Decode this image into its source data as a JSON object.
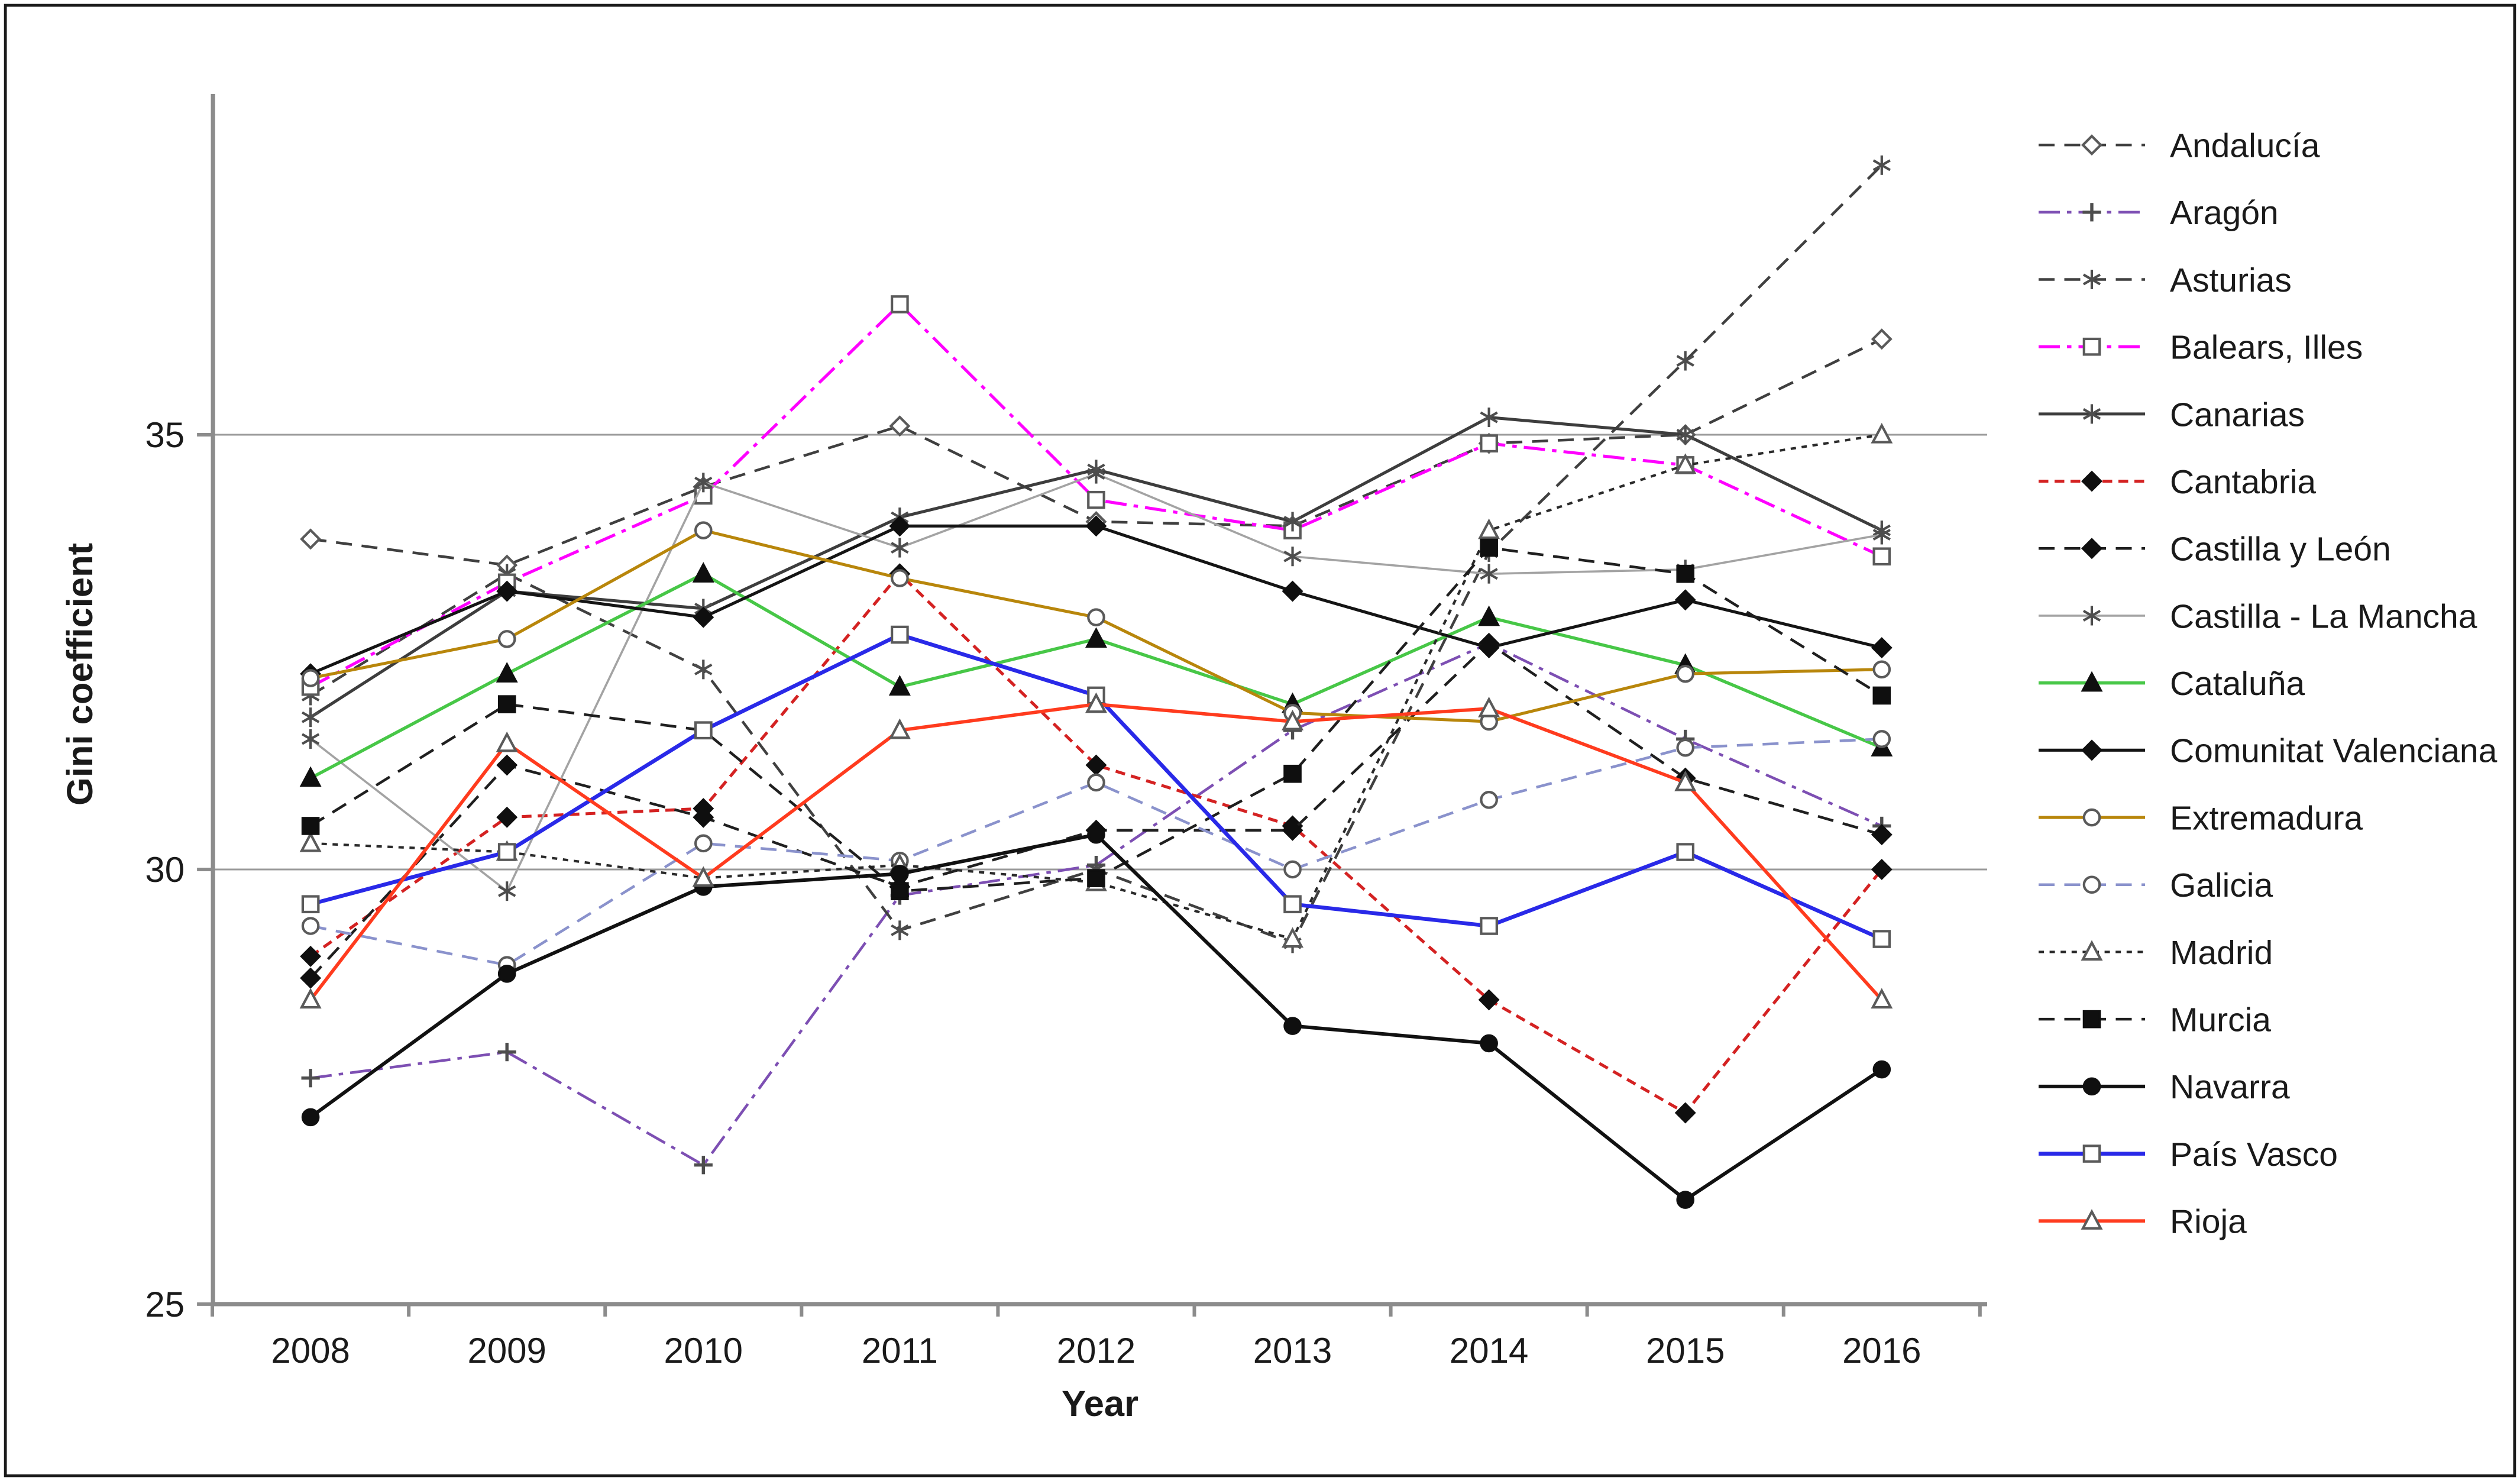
{
  "figure": {
    "kind": "statistical line chart",
    "background": "#ffffff",
    "border_color": "#1a1a1a"
  },
  "chart_data": {
    "type": "line",
    "title": "",
    "xlabel": "Year",
    "ylabel": "Gini coefficient",
    "x": [
      2008,
      2009,
      2010,
      2011,
      2012,
      2013,
      2014,
      2015,
      2016
    ],
    "yticks": [
      25,
      30,
      35
    ],
    "gridlines": [
      30,
      35
    ],
    "ylim": [
      25,
      38.9
    ],
    "legend_position": "right",
    "axis_color": "#8c8c8c",
    "grid_color": "#9a9a9a",
    "series": [
      {
        "name": "Andalucía",
        "color": "#3f3f3f",
        "line": "dashed",
        "width": 1.5,
        "marker": "diamond",
        "fill": "open",
        "values": [
          33.8,
          33.5,
          34.4,
          35.1,
          34.0,
          33.95,
          34.9,
          35.0,
          36.1
        ]
      },
      {
        "name": "Aragón",
        "color": "#7d4fb3",
        "line": "dashdot",
        "width": 1.5,
        "marker": "plus",
        "fill": "open",
        "values": [
          27.6,
          27.9,
          26.6,
          29.7,
          30.05,
          31.6,
          32.6,
          31.5,
          30.5
        ]
      },
      {
        "name": "Asturias",
        "color": "#404040",
        "line": "dashed",
        "width": 1.5,
        "marker": "asterisk",
        "fill": "open",
        "values": [
          32.0,
          33.4,
          32.3,
          29.3,
          30.0,
          29.15,
          33.65,
          35.85,
          38.1
        ]
      },
      {
        "name": "Balears, Illes",
        "color": "#ff00ff",
        "line": "dashdot",
        "width": 1.7,
        "marker": "square",
        "fill": "open",
        "values": [
          32.1,
          33.3,
          34.3,
          36.5,
          34.25,
          33.9,
          34.9,
          34.65,
          33.6
        ]
      },
      {
        "name": "Canarias",
        "color": "#3d3d3d",
        "line": "solid",
        "width": 1.7,
        "marker": "asterisk",
        "fill": "open",
        "values": [
          31.75,
          33.2,
          33.0,
          34.05,
          34.6,
          34.0,
          35.2,
          35.0,
          33.9
        ]
      },
      {
        "name": "Cantabria",
        "color": "#d42222",
        "line": "finedash",
        "width": 1.7,
        "marker": "diamond",
        "fill": "filled",
        "values": [
          29.0,
          30.6,
          30.7,
          33.4,
          31.2,
          30.5,
          28.5,
          27.2,
          30.0
        ]
      },
      {
        "name": "Castilla y León",
        "color": "#1f1f1f",
        "line": "dashed",
        "width": 1.5,
        "marker": "diamond",
        "fill": "filled",
        "values": [
          28.75,
          31.2,
          30.6,
          29.8,
          30.45,
          30.45,
          32.6,
          31.05,
          30.4
        ]
      },
      {
        "name": "Castilla - La Mancha",
        "color": "#a3a3a3",
        "line": "solid",
        "width": 1.2,
        "marker": "asterisk",
        "fill": "open",
        "values": [
          31.5,
          29.75,
          34.45,
          33.7,
          34.55,
          33.6,
          33.4,
          33.45,
          33.85
        ]
      },
      {
        "name": "Cataluña",
        "color": "#47c747",
        "line": "solid",
        "width": 1.8,
        "marker": "triangle",
        "fill": "filled",
        "values": [
          31.05,
          32.25,
          33.4,
          32.1,
          32.65,
          31.9,
          32.9,
          32.35,
          31.4
        ]
      },
      {
        "name": "Comunitat Valenciana",
        "color": "#141414",
        "line": "solid",
        "width": 1.7,
        "marker": "diamond",
        "fill": "filled",
        "values": [
          32.25,
          33.2,
          32.9,
          33.95,
          33.95,
          33.2,
          32.55,
          33.1,
          32.55
        ]
      },
      {
        "name": "Extremadura",
        "color": "#b8860b",
        "line": "solid",
        "width": 1.7,
        "marker": "circle",
        "fill": "open",
        "values": [
          32.2,
          32.65,
          33.9,
          33.35,
          32.9,
          31.8,
          31.7,
          32.25,
          32.3
        ]
      },
      {
        "name": "Galicia",
        "color": "#8a92cc",
        "line": "dashed",
        "width": 1.5,
        "marker": "circle",
        "fill": "open",
        "values": [
          29.35,
          28.9,
          30.3,
          30.1,
          31.0,
          30.0,
          30.8,
          31.4,
          31.5
        ]
      },
      {
        "name": "Madrid",
        "color": "#2a2a2a",
        "line": "dotted",
        "width": 1.4,
        "marker": "triangle",
        "fill": "open",
        "values": [
          30.3,
          30.2,
          29.9,
          30.05,
          29.85,
          29.2,
          33.9,
          34.65,
          35.0
        ]
      },
      {
        "name": "Murcia",
        "color": "#1f1f1f",
        "line": "dashed",
        "width": 1.5,
        "marker": "square",
        "fill": "filled",
        "values": [
          30.5,
          31.9,
          31.6,
          29.75,
          29.9,
          31.1,
          33.7,
          33.4,
          32.0
        ]
      },
      {
        "name": "Navarra",
        "color": "#111111",
        "line": "solid",
        "width": 2.0,
        "marker": "circle",
        "fill": "filled",
        "values": [
          27.15,
          28.8,
          29.8,
          29.95,
          30.4,
          28.2,
          28.0,
          26.2,
          27.7
        ]
      },
      {
        "name": "País Vasco",
        "color": "#2929e8",
        "line": "solid",
        "width": 2.2,
        "marker": "square",
        "fill": "open",
        "values": [
          29.6,
          30.2,
          31.6,
          32.7,
          32.0,
          29.6,
          29.35,
          30.2,
          29.2
        ]
      },
      {
        "name": "Rioja",
        "color": "#ff3b1e",
        "line": "solid",
        "width": 1.9,
        "marker": "triangle",
        "fill": "open",
        "values": [
          28.5,
          31.45,
          29.9,
          31.6,
          31.9,
          31.7,
          31.85,
          31.0,
          28.5
        ]
      }
    ]
  }
}
